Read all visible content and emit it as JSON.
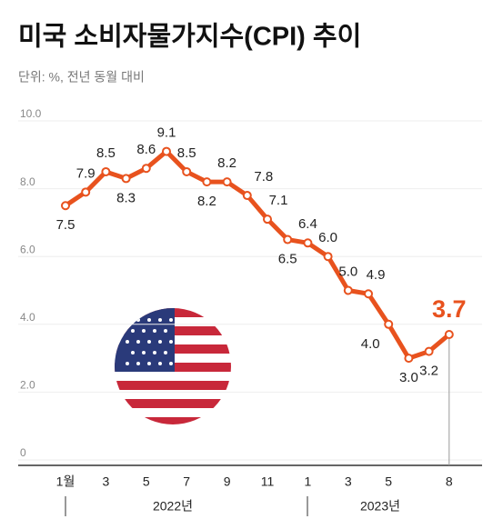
{
  "chart_data": {
    "type": "line",
    "title": "미국 소비자물가지수(CPI) 추이",
    "subtitle": "단위: %, 전년 동월 대비",
    "categories": [
      "1월",
      null,
      "3",
      null,
      "5",
      null,
      "7",
      null,
      "9",
      null,
      "11",
      null,
      "1",
      null,
      "3",
      null,
      "5",
      null,
      null,
      "8"
    ],
    "year_labels": [
      "2022년",
      "2023년"
    ],
    "series": [
      {
        "name": "CPI",
        "color": "#e8521e",
        "values": [
          7.5,
          7.9,
          8.5,
          8.3,
          8.6,
          9.1,
          8.5,
          8.2,
          8.2,
          7.8,
          7.1,
          6.5,
          6.4,
          6.0,
          5.0,
          4.9,
          4.0,
          3.0,
          3.2,
          3.7
        ],
        "value_labels": [
          "7.5",
          "7.9",
          "8.5",
          "8.3",
          "8.6",
          "9.1",
          "8.5",
          "8.2",
          "8.2",
          "7.8",
          "7.1",
          "6.5",
          "6.4",
          "6.0",
          "5.0",
          "4.9",
          "4.0",
          "3.0",
          "3.2",
          "3.7"
        ]
      }
    ],
    "ylim": [
      0,
      10
    ],
    "yticks": [
      0,
      {
        "value": 2,
        "label": "2.0"
      },
      {
        "value": 4,
        "label": "4.0"
      },
      {
        "value": 6,
        "label": "6.0"
      },
      {
        "value": 8,
        "label": "8.0"
      },
      {
        "value": 10,
        "label": "10.0"
      }
    ],
    "grid": true
  }
}
